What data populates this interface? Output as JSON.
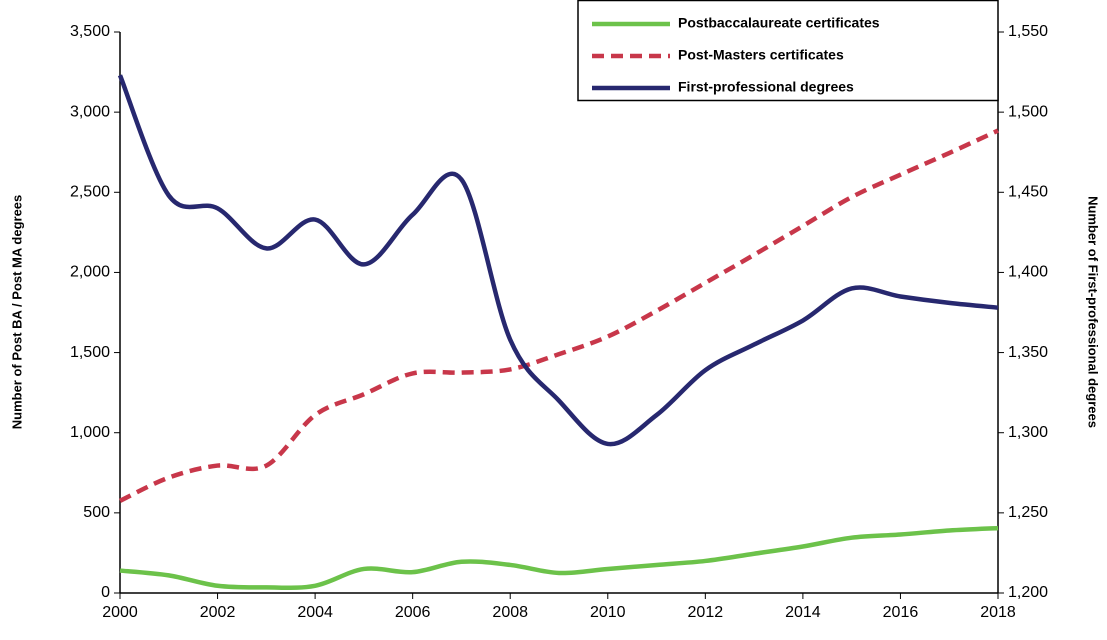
{
  "chart_data": {
    "type": "line",
    "y_label": "Number of Post BA / Post MA degrees",
    "y2_label": "Number of First-professional degrees",
    "x": [
      2000,
      2001,
      2002,
      2003,
      2004,
      2005,
      2006,
      2007,
      2008,
      2009,
      2010,
      2011,
      2012,
      2013,
      2014,
      2015,
      2016,
      2017,
      2018
    ],
    "xlim": [
      2000,
      2018
    ],
    "xticks": [
      2000,
      2002,
      2004,
      2006,
      2008,
      2010,
      2012,
      2014,
      2016,
      2018
    ],
    "ylim": [
      0,
      3500
    ],
    "yticks": [
      0,
      500,
      {
        "value": 1000,
        "label": "1,000"
      },
      {
        "value": 1500,
        "label": "1,500"
      },
      {
        "value": 2000,
        "label": "2,000"
      },
      {
        "value": 2500,
        "label": "2,500"
      },
      {
        "value": 3000,
        "label": "3,000"
      },
      {
        "value": 3500,
        "label": "3,500"
      }
    ],
    "y2lim": [
      1200,
      1550
    ],
    "y2ticks": [
      {
        "value": 1200,
        "label": "1,200"
      },
      {
        "value": 1250,
        "label": "1,250"
      },
      {
        "value": 1300,
        "label": "1,300"
      },
      {
        "value": 1350,
        "label": "1,350"
      },
      {
        "value": 1400,
        "label": "1,400"
      },
      {
        "value": 1450,
        "label": "1,450"
      },
      {
        "value": 1500,
        "label": "1,500"
      },
      {
        "value": 1550,
        "label": "1,550"
      }
    ],
    "grid": false,
    "legend": "upper right",
    "series": [
      {
        "name": "Postbaccalaureate certificates",
        "color": "#6cc24a",
        "dash": "solid",
        "values": [
          140,
          110,
          45,
          35,
          45,
          150,
          130,
          195,
          175,
          125,
          150,
          175,
          200,
          245,
          290,
          345,
          365,
          390,
          405
        ]
      },
      {
        "name": "Post-Masters certificates",
        "color": "#c8374a",
        "dash": "dashed",
        "values": [
          575,
          720,
          795,
          795,
          1110,
          1240,
          1370,
          1375,
          1395,
          1490,
          1600,
          1760,
          1935,
          2110,
          2290,
          2470,
          2610,
          2745,
          2885
        ]
      },
      {
        "name": "First-professional degrees",
        "color": "#27286f",
        "dash": "solid",
        "axis": "y2",
        "values": [
          1523,
          1448,
          1440,
          1415,
          1433,
          1405,
          1436,
          1458,
          1358,
          1320,
          1293,
          1311,
          1339,
          1355,
          1370,
          1390,
          1385,
          1381,
          1378
        ]
      }
    ]
  }
}
